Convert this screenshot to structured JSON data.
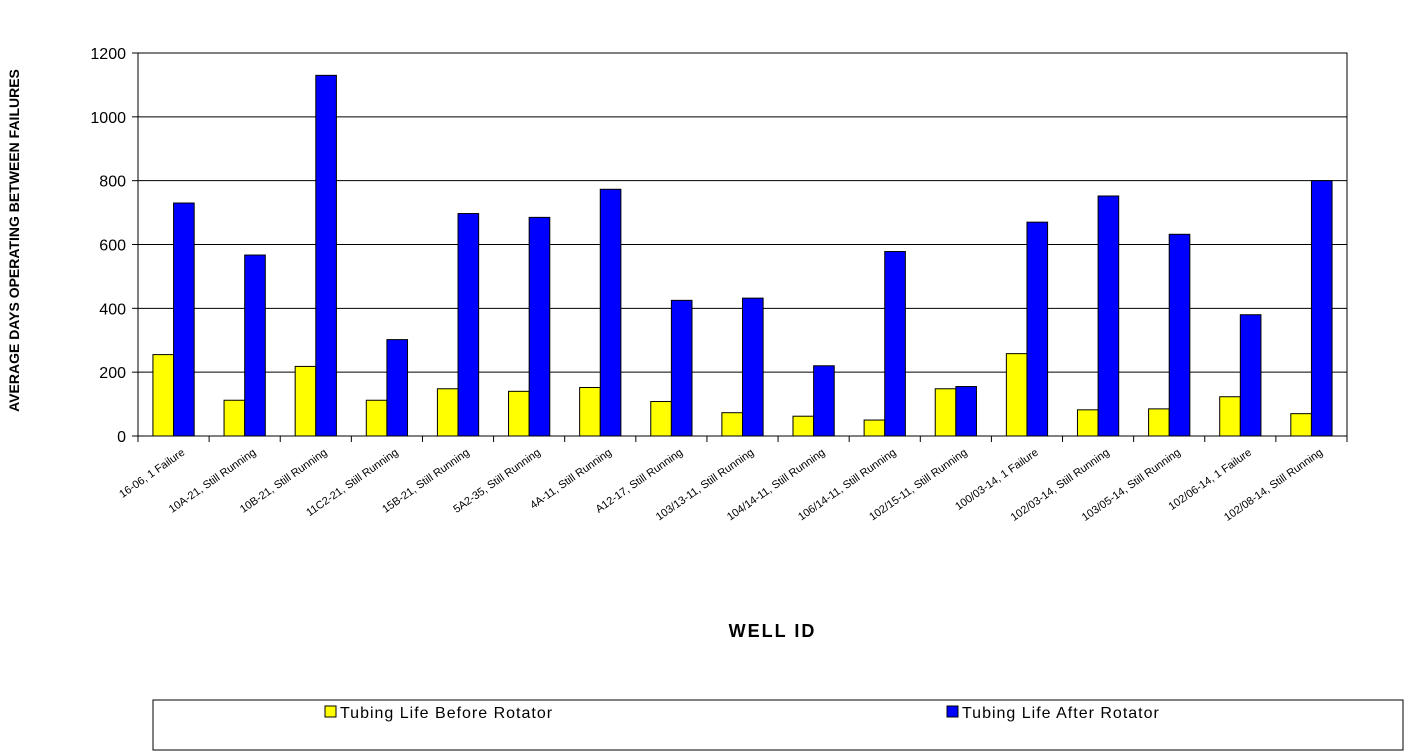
{
  "chart_data": {
    "type": "bar",
    "xlabel": "WELL ID",
    "ylabel": "AVERAGE DAYS OPERATING BETWEEN FAILURES",
    "ylim": [
      0,
      1200
    ],
    "yticks": [
      0,
      200,
      400,
      600,
      800,
      1000,
      1200
    ],
    "grid": true,
    "legend_position": "bottom",
    "categories": [
      "16-06, 1 Failure",
      "10A-21, Still Running",
      "10B-21, Still Running",
      "11C2-21, Still Running",
      "15B-21, Still Running",
      "5A2-35, Still Running",
      "4A-11, Still Running",
      "A12-17, Still Running",
      "103/13-11, Still Running",
      "104/14-11, Still Running",
      "106/14-11, Still Running",
      "102/15-11, Still Running",
      "100/03-14, 1 Failure",
      "102/03-14, Still Running",
      "103/05-14, Still Running",
      "102/06-14, 1 Failure",
      "102/08-14, Still Running"
    ],
    "series": [
      {
        "name": "Tubing Life Before Rotator",
        "color": "#ffff00",
        "values": [
          255,
          112,
          218,
          112,
          148,
          140,
          152,
          108,
          73,
          62,
          50,
          148,
          258,
          82,
          85,
          123,
          70
        ]
      },
      {
        "name": "Tubing Life After Rotator",
        "color": "#0000ff",
        "values": [
          730,
          567,
          1130,
          302,
          697,
          685,
          773,
          425,
          432,
          220,
          578,
          155,
          670,
          752,
          632,
          380,
          800
        ]
      }
    ]
  }
}
